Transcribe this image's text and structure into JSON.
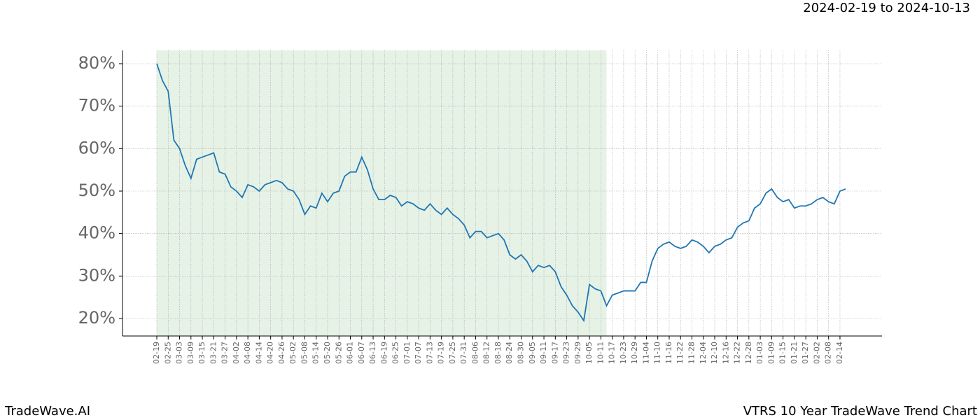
{
  "chart_data": {
    "type": "line",
    "title": "VTRS 10 Year TradeWave Trend Chart",
    "date_range": "2024-02-19 to 2024-10-13",
    "brand": "TradeWave.AI",
    "categories": [
      "02-19",
      null,
      "02-25",
      null,
      "03-03",
      null,
      "03-09",
      null,
      "03-15",
      null,
      "03-21",
      null,
      "03-27",
      null,
      "04-02",
      null,
      "04-08",
      null,
      "04-14",
      null,
      "04-20",
      null,
      "04-26",
      null,
      "05-02",
      null,
      "05-08",
      null,
      "05-14",
      null,
      "05-20",
      null,
      "05-26",
      null,
      "06-01",
      null,
      "06-07",
      null,
      "06-13",
      null,
      "06-19",
      null,
      "06-25",
      null,
      "07-01",
      null,
      "07-07",
      null,
      "07-13",
      null,
      "07-19",
      null,
      "07-25",
      null,
      "07-31",
      null,
      "08-06",
      null,
      "08-12",
      null,
      "08-18",
      null,
      "08-24",
      null,
      "08-30",
      null,
      "09-05",
      null,
      "09-11",
      null,
      "09-17",
      null,
      "09-23",
      null,
      "09-29",
      null,
      "10-05",
      null,
      "10-11",
      null,
      "10-17",
      null,
      "10-23",
      null,
      "10-29",
      null,
      "11-04",
      null,
      "11-10",
      null,
      "11-16",
      null,
      "11-22",
      null,
      "11-28",
      null,
      "12-04",
      null,
      "12-10",
      null,
      "12-16",
      null,
      "12-22",
      null,
      "12-28",
      null,
      "01-03",
      null,
      "01-09",
      null,
      "01-15",
      null,
      "01-21",
      null,
      "01-27",
      null,
      "02-02",
      null,
      "02-08",
      null,
      "02-14",
      null
    ],
    "series": [
      {
        "color": "#1f77b4",
        "values": [
          80,
          76,
          73.5,
          62,
          60,
          56,
          53,
          57.5,
          58,
          58.5,
          59,
          54.5,
          54,
          51,
          50,
          48.5,
          51.5,
          51,
          50,
          51.5,
          52,
          52.5,
          52,
          50.5,
          50,
          48,
          44.5,
          46.5,
          46,
          49.5,
          47.5,
          49.5,
          50,
          53.5,
          54.5,
          54.5,
          58,
          55,
          50.5,
          48,
          48,
          49,
          48.5,
          46.5,
          47.5,
          47,
          46,
          45.5,
          47,
          45.5,
          44.5,
          46,
          44.5,
          43.5,
          42,
          39,
          40.5,
          40.5,
          39,
          39.5,
          40,
          38.5,
          35,
          34,
          35,
          33.5,
          31,
          32.5,
          32,
          32.5,
          31,
          27.5,
          25.5,
          23,
          21.5,
          19.5,
          28,
          27,
          26.5,
          23,
          25.5,
          26,
          26.5,
          26.5,
          26.5,
          28.5,
          28.5,
          33.5,
          36.5,
          37.5,
          38,
          37,
          36.5,
          37,
          38.5,
          38,
          37,
          35.5,
          37,
          37.5,
          38.5,
          39,
          41.5,
          42.5,
          43,
          46,
          47,
          49.5,
          50.5,
          48.5,
          47.5,
          48,
          46,
          46.5,
          46.5,
          47,
          48,
          48.5,
          47.5,
          47,
          50,
          50.5
        ]
      }
    ],
    "ylim": [
      15.88,
      83.13
    ],
    "yticks": [
      {
        "value": 20,
        "label": "20%"
      },
      {
        "value": 30,
        "label": "30%"
      },
      {
        "value": 40,
        "label": "40%"
      },
      {
        "value": 50,
        "label": "50%"
      },
      {
        "value": 60,
        "label": "60%"
      },
      {
        "value": 70,
        "label": "70%"
      },
      {
        "value": 80,
        "label": "80%"
      }
    ],
    "grid": true
  }
}
